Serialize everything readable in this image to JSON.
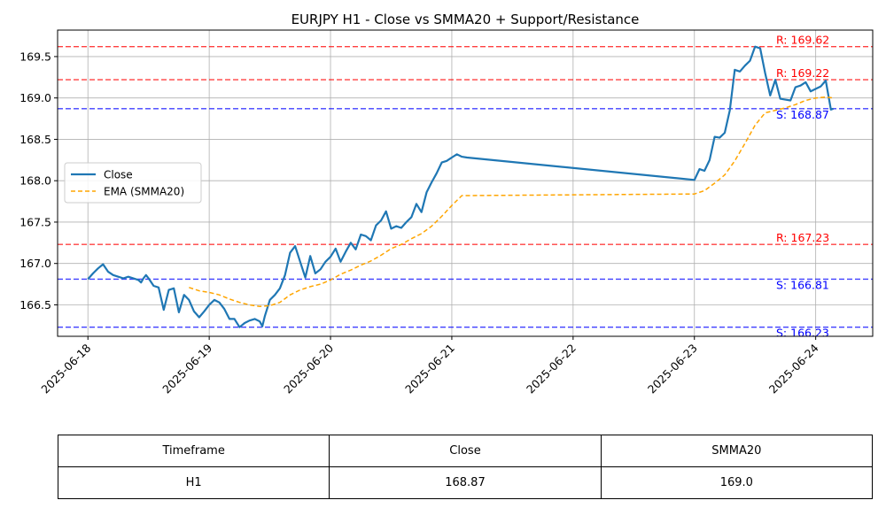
{
  "chart_data": {
    "type": "line",
    "title": "EURJPY H1 - Close vs SMMA20 + Support/Resistance",
    "xlabel": "",
    "ylabel": "",
    "x_ticks": [
      "2025-06-18",
      "2025-06-19",
      "2025-06-20",
      "2025-06-21",
      "2025-06-22",
      "2025-06-23",
      "2025-06-24"
    ],
    "y_ticks": [
      "166.5",
      "167.0",
      "167.5",
      "168.0",
      "168.5",
      "169.0",
      "169.5"
    ],
    "xlim": [
      -0.25,
      6.47
    ],
    "ylim": [
      166.12,
      169.82
    ],
    "grid": true,
    "legend_position": "center-left",
    "series": [
      {
        "name": "Close",
        "color": "#1f77b4",
        "points": [
          [
            0,
            166.81
          ],
          [
            0.042,
            166.88
          ],
          [
            0.083,
            166.94
          ],
          [
            0.125,
            166.99
          ],
          [
            0.167,
            166.9
          ],
          [
            0.208,
            166.86
          ],
          [
            0.25,
            166.84
          ],
          [
            0.292,
            166.82
          ],
          [
            0.333,
            166.84
          ],
          [
            0.375,
            166.82
          ],
          [
            0.417,
            166.8
          ],
          [
            0.438,
            166.77
          ],
          [
            0.458,
            166.82
          ],
          [
            0.479,
            166.86
          ],
          [
            0.5,
            166.82
          ],
          [
            0.542,
            166.73
          ],
          [
            0.583,
            166.71
          ],
          [
            0.625,
            166.44
          ],
          [
            0.667,
            166.68
          ],
          [
            0.708,
            166.7
          ],
          [
            0.75,
            166.41
          ],
          [
            0.792,
            166.62
          ],
          [
            0.833,
            166.56
          ],
          [
            0.875,
            166.42
          ],
          [
            0.917,
            166.35
          ],
          [
            0.958,
            166.42
          ],
          [
            1.0,
            166.5
          ],
          [
            1.042,
            166.56
          ],
          [
            1.083,
            166.53
          ],
          [
            1.125,
            166.45
          ],
          [
            1.167,
            166.33
          ],
          [
            1.208,
            166.33
          ],
          [
            1.25,
            166.23
          ],
          [
            1.292,
            166.28
          ],
          [
            1.333,
            166.31
          ],
          [
            1.375,
            166.33
          ],
          [
            1.417,
            166.3
          ],
          [
            1.438,
            166.24
          ],
          [
            1.458,
            166.36
          ],
          [
            1.5,
            166.56
          ],
          [
            1.542,
            166.62
          ],
          [
            1.583,
            166.7
          ],
          [
            1.625,
            166.86
          ],
          [
            1.667,
            167.13
          ],
          [
            1.708,
            167.21
          ],
          [
            1.75,
            167.02
          ],
          [
            1.792,
            166.83
          ],
          [
            1.833,
            167.09
          ],
          [
            1.875,
            166.88
          ],
          [
            1.917,
            166.93
          ],
          [
            1.958,
            167.02
          ],
          [
            2.0,
            167.08
          ],
          [
            2.042,
            167.18
          ],
          [
            2.083,
            167.02
          ],
          [
            2.125,
            167.14
          ],
          [
            2.167,
            167.25
          ],
          [
            2.208,
            167.17
          ],
          [
            2.25,
            167.35
          ],
          [
            2.292,
            167.33
          ],
          [
            2.333,
            167.28
          ],
          [
            2.375,
            167.46
          ],
          [
            2.417,
            167.52
          ],
          [
            2.458,
            167.63
          ],
          [
            2.5,
            167.42
          ],
          [
            2.542,
            167.45
          ],
          [
            2.583,
            167.43
          ],
          [
            2.625,
            167.5
          ],
          [
            2.667,
            167.56
          ],
          [
            2.708,
            167.72
          ],
          [
            2.75,
            167.62
          ],
          [
            2.792,
            167.86
          ],
          [
            2.833,
            167.98
          ],
          [
            2.875,
            168.09
          ],
          [
            2.917,
            168.22
          ],
          [
            2.958,
            168.24
          ],
          [
            3.0,
            168.28
          ],
          [
            3.042,
            168.32
          ],
          [
            3.083,
            168.29
          ],
          [
            3.125,
            168.28
          ],
          [
            5.0,
            168.01
          ],
          [
            5.042,
            168.14
          ],
          [
            5.083,
            168.12
          ],
          [
            5.125,
            168.25
          ],
          [
            5.167,
            168.53
          ],
          [
            5.208,
            168.52
          ],
          [
            5.25,
            168.58
          ],
          [
            5.292,
            168.85
          ],
          [
            5.333,
            169.34
          ],
          [
            5.375,
            169.32
          ],
          [
            5.417,
            169.39
          ],
          [
            5.458,
            169.45
          ],
          [
            5.5,
            169.62
          ],
          [
            5.542,
            169.6
          ],
          [
            5.583,
            169.3
          ],
          [
            5.625,
            169.03
          ],
          [
            5.667,
            169.22
          ],
          [
            5.708,
            168.99
          ],
          [
            5.75,
            168.98
          ],
          [
            5.792,
            168.97
          ],
          [
            5.833,
            169.13
          ],
          [
            5.875,
            169.15
          ],
          [
            5.917,
            169.19
          ],
          [
            5.958,
            169.08
          ],
          [
            6.0,
            169.11
          ],
          [
            6.042,
            169.14
          ],
          [
            6.083,
            169.21
          ],
          [
            6.125,
            168.86
          ],
          [
            6.146,
            168.87
          ]
        ]
      },
      {
        "name": "EMA (SMMA20)",
        "color": "#ffa500",
        "points": [
          [
            0.833,
            166.71
          ],
          [
            0.917,
            166.67
          ],
          [
            1.0,
            166.65
          ],
          [
            1.083,
            166.62
          ],
          [
            1.167,
            166.57
          ],
          [
            1.25,
            166.53
          ],
          [
            1.333,
            166.5
          ],
          [
            1.417,
            166.48
          ],
          [
            1.5,
            166.49
          ],
          [
            1.583,
            166.53
          ],
          [
            1.667,
            166.62
          ],
          [
            1.75,
            166.68
          ],
          [
            1.833,
            166.72
          ],
          [
            1.917,
            166.75
          ],
          [
            2.0,
            166.8
          ],
          [
            2.083,
            166.87
          ],
          [
            2.167,
            166.92
          ],
          [
            2.25,
            166.98
          ],
          [
            2.333,
            167.03
          ],
          [
            2.417,
            167.1
          ],
          [
            2.5,
            167.18
          ],
          [
            2.583,
            167.23
          ],
          [
            2.667,
            167.3
          ],
          [
            2.75,
            167.36
          ],
          [
            2.833,
            167.45
          ],
          [
            2.917,
            167.57
          ],
          [
            3.0,
            167.7
          ],
          [
            3.083,
            167.82
          ],
          [
            3.125,
            167.82
          ],
          [
            5.0,
            167.84
          ],
          [
            5.083,
            167.88
          ],
          [
            5.167,
            167.97
          ],
          [
            5.25,
            168.07
          ],
          [
            5.333,
            168.24
          ],
          [
            5.417,
            168.45
          ],
          [
            5.5,
            168.67
          ],
          [
            5.583,
            168.82
          ],
          [
            5.667,
            168.85
          ],
          [
            5.75,
            168.88
          ],
          [
            5.833,
            168.92
          ],
          [
            5.917,
            168.97
          ],
          [
            6.0,
            169.0
          ],
          [
            6.083,
            169.01
          ],
          [
            6.146,
            169.0
          ]
        ]
      }
    ],
    "levels": [
      {
        "type": "resistance",
        "value": 169.62,
        "label": "R: 169.62",
        "color": "#ff0000"
      },
      {
        "type": "resistance",
        "value": 169.22,
        "label": "R: 169.22",
        "color": "#ff0000"
      },
      {
        "type": "support",
        "value": 168.87,
        "label": "S: 168.87",
        "color": "#0000ff"
      },
      {
        "type": "resistance",
        "value": 167.23,
        "label": "R: 167.23",
        "color": "#ff0000"
      },
      {
        "type": "support",
        "value": 166.81,
        "label": "S: 166.81",
        "color": "#0000ff"
      },
      {
        "type": "support",
        "value": 166.23,
        "label": "S: 166.23",
        "color": "#0000ff"
      }
    ]
  },
  "table": {
    "headers": [
      "Timeframe",
      "Close",
      "SMMA20"
    ],
    "row": [
      "H1",
      "168.87",
      "169.0"
    ]
  }
}
